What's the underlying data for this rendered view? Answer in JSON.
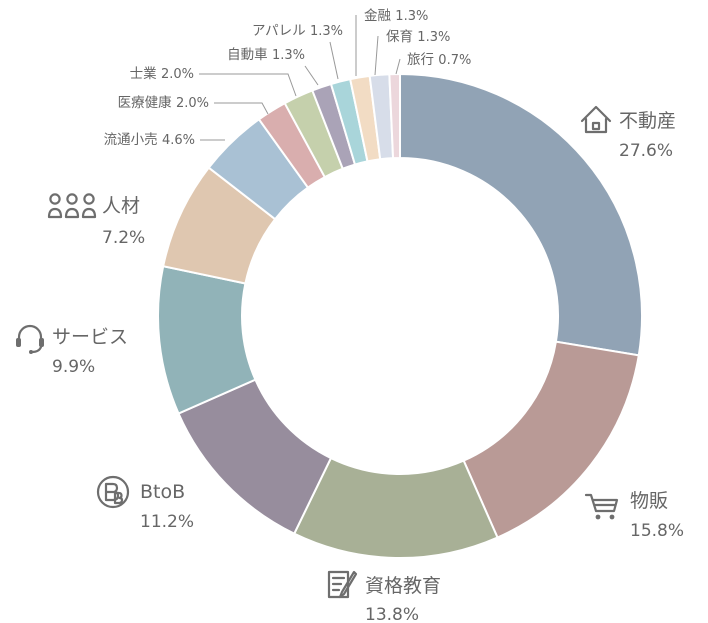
{
  "chart_data": {
    "type": "pie",
    "variant": "donut",
    "title": "",
    "legend": "none",
    "slices": [
      {
        "label": "不動産",
        "value": 27.6,
        "display": "27.6%",
        "color": "#91a3b5",
        "icon": "house-icon"
      },
      {
        "label": "物販",
        "value": 15.8,
        "display": "15.8%",
        "color": "#b99a96",
        "icon": "shopping-cart-icon"
      },
      {
        "label": "資格教育",
        "value": 13.8,
        "display": "13.8%",
        "color": "#a8b096",
        "icon": "notepad-pen-icon"
      },
      {
        "label": "BtoB",
        "value": 11.2,
        "display": "11.2%",
        "color": "#978d9d",
        "icon": "btob-circle-icon"
      },
      {
        "label": "サービス",
        "value": 9.9,
        "display": "9.9%",
        "color": "#91b3b8",
        "icon": "headset-icon"
      },
      {
        "label": "人材",
        "value": 7.2,
        "display": "7.2%",
        "color": "#dfc7b0",
        "icon": "people-group-icon"
      },
      {
        "label": "流通小売",
        "value": 4.6,
        "display": "4.6%",
        "color": "#a9c1d4",
        "icon": ""
      },
      {
        "label": "医療健康",
        "value": 2.0,
        "display": "2.0%",
        "color": "#d9aeae",
        "icon": ""
      },
      {
        "label": "士業",
        "value": 2.0,
        "display": "2.0%",
        "color": "#c5d0ac",
        "icon": ""
      },
      {
        "label": "自動車",
        "value": 1.3,
        "display": "1.3%",
        "color": "#aaa3b7",
        "icon": ""
      },
      {
        "label": "アパレル",
        "value": 1.3,
        "display": "1.3%",
        "color": "#a9d5da",
        "icon": ""
      },
      {
        "label": "金融",
        "value": 1.3,
        "display": "1.3%",
        "color": "#f2dcc4",
        "icon": ""
      },
      {
        "label": "保育",
        "value": 1.3,
        "display": "1.3%",
        "color": "#d7dde9",
        "icon": ""
      },
      {
        "label": "旅行",
        "value": 0.7,
        "display": "0.7%",
        "color": "#ecd7dc",
        "icon": ""
      }
    ]
  }
}
